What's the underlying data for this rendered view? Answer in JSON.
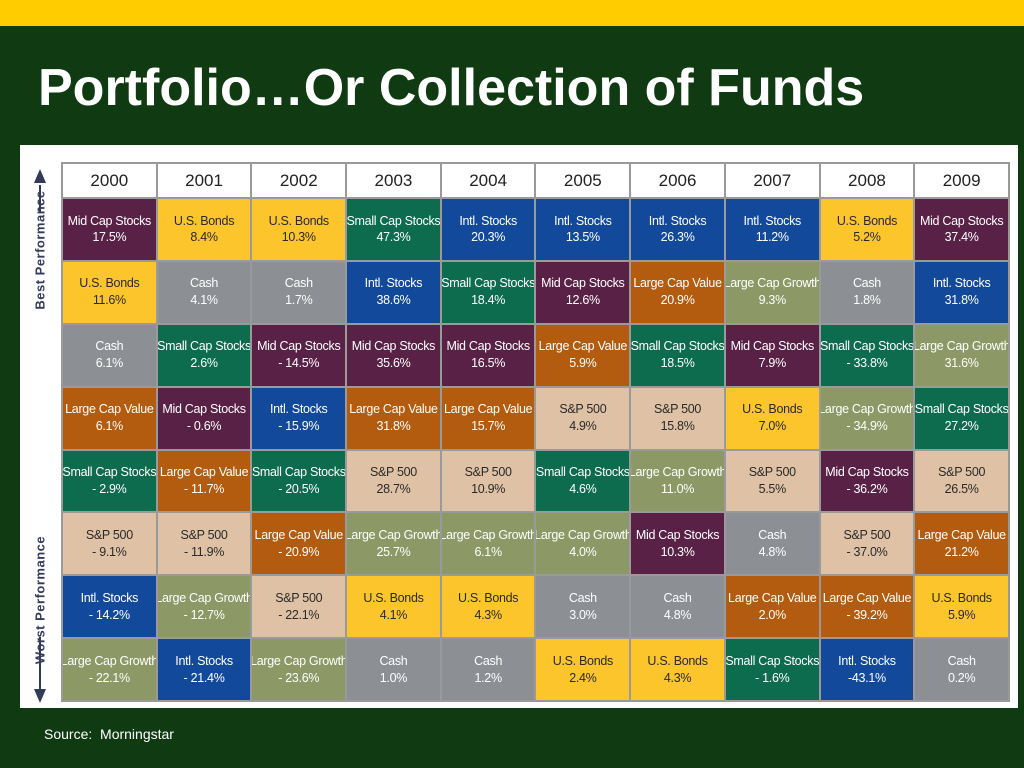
{
  "slide": {
    "title": "Portfolio…Or Collection of Funds",
    "source": "Source:  Morningstar"
  },
  "axis": {
    "best_label": "Best Performance",
    "worst_label": "Worst Performance"
  },
  "colors": {
    "top_bar": "#ffcc00",
    "background": "#0f3a12",
    "Mid Cap Stocks": "#5a2147",
    "U.S. Bonds": "#fcc52c",
    "Small Cap Stocks": "#0d6b4e",
    "Intl. Stocks": "#12499b",
    "Cash": "#8c9095",
    "Large Cap Value": "#b35c10",
    "Large Cap Growth": "#8c9866",
    "S&P 500": "#dfc1a5"
  },
  "table": {
    "years": [
      "2000",
      "2001",
      "2002",
      "2003",
      "2004",
      "2005",
      "2006",
      "2007",
      "2008",
      "2009"
    ],
    "rows": [
      [
        {
          "name": "Mid Cap Stocks",
          "value": "17.5%"
        },
        {
          "name": "U.S. Bonds",
          "value": "8.4%"
        },
        {
          "name": "U.S. Bonds",
          "value": "10.3%"
        },
        {
          "name": "Small Cap Stocks",
          "value": "47.3%"
        },
        {
          "name": "Intl. Stocks",
          "value": "20.3%"
        },
        {
          "name": "Intl. Stocks",
          "value": "13.5%"
        },
        {
          "name": "Intl. Stocks",
          "value": "26.3%"
        },
        {
          "name": "Intl. Stocks",
          "value": "11.2%"
        },
        {
          "name": "U.S. Bonds",
          "value": "5.2%"
        },
        {
          "name": "Mid Cap Stocks",
          "value": "37.4%"
        }
      ],
      [
        {
          "name": "U.S. Bonds",
          "value": "11.6%"
        },
        {
          "name": "Cash",
          "value": "4.1%"
        },
        {
          "name": "Cash",
          "value": "1.7%"
        },
        {
          "name": "Intl. Stocks",
          "value": "38.6%"
        },
        {
          "name": "Small Cap Stocks",
          "value": "18.4%"
        },
        {
          "name": "Mid Cap Stocks",
          "value": "12.6%"
        },
        {
          "name": "Large Cap Value",
          "value": "20.9%"
        },
        {
          "name": "Large Cap Growth",
          "value": "9.3%"
        },
        {
          "name": "Cash",
          "value": "1.8%"
        },
        {
          "name": "Intl. Stocks",
          "value": "31.8%"
        }
      ],
      [
        {
          "name": "Cash",
          "value": "6.1%"
        },
        {
          "name": "Small Cap Stocks",
          "value": "2.6%"
        },
        {
          "name": "Mid Cap Stocks",
          "value": "- 14.5%"
        },
        {
          "name": "Mid Cap Stocks",
          "value": "35.6%"
        },
        {
          "name": "Mid Cap Stocks",
          "value": "16.5%"
        },
        {
          "name": "Large Cap Value",
          "value": "5.9%"
        },
        {
          "name": "Small Cap Stocks",
          "value": "18.5%"
        },
        {
          "name": "Mid Cap Stocks",
          "value": "7.9%"
        },
        {
          "name": "Small Cap Stocks",
          "value": "- 33.8%"
        },
        {
          "name": "Large Cap Growth",
          "value": "31.6%"
        }
      ],
      [
        {
          "name": "Large Cap Value",
          "value": "6.1%"
        },
        {
          "name": "Mid Cap Stocks",
          "value": "- 0.6%"
        },
        {
          "name": "Intl. Stocks",
          "value": "- 15.9%"
        },
        {
          "name": "Large Cap Value",
          "value": "31.8%"
        },
        {
          "name": "Large Cap Value",
          "value": "15.7%"
        },
        {
          "name": "S&P 500",
          "value": "4.9%"
        },
        {
          "name": "S&P 500",
          "value": "15.8%"
        },
        {
          "name": "U.S. Bonds",
          "value": "7.0%"
        },
        {
          "name": "Large Cap Growth",
          "value": "- 34.9%"
        },
        {
          "name": "Small Cap Stocks",
          "value": "27.2%"
        }
      ],
      [
        {
          "name": "Small Cap Stocks",
          "value": "- 2.9%"
        },
        {
          "name": "Large Cap Value",
          "value": "- 11.7%"
        },
        {
          "name": "Small Cap Stocks",
          "value": "- 20.5%"
        },
        {
          "name": "S&P 500",
          "value": "28.7%"
        },
        {
          "name": "S&P 500",
          "value": "10.9%"
        },
        {
          "name": "Small Cap Stocks",
          "value": "4.6%"
        },
        {
          "name": "Large Cap Growth",
          "value": "11.0%"
        },
        {
          "name": "S&P 500",
          "value": "5.5%"
        },
        {
          "name": "Mid Cap Stocks",
          "value": "- 36.2%"
        },
        {
          "name": "S&P 500",
          "value": "26.5%"
        }
      ],
      [
        {
          "name": "S&P 500",
          "value": "- 9.1%"
        },
        {
          "name": "S&P 500",
          "value": "- 11.9%"
        },
        {
          "name": "Large Cap Value",
          "value": "- 20.9%"
        },
        {
          "name": "Large Cap Growth",
          "value": "25.7%"
        },
        {
          "name": "Large Cap Growth",
          "value": "6.1%"
        },
        {
          "name": "Large Cap Growth",
          "value": "4.0%"
        },
        {
          "name": "Mid Cap Stocks",
          "value": "10.3%"
        },
        {
          "name": "Cash",
          "value": "4.8%"
        },
        {
          "name": "S&P 500",
          "value": "- 37.0%"
        },
        {
          "name": "Large Cap Value",
          "value": "21.2%"
        }
      ],
      [
        {
          "name": "Intl. Stocks",
          "value": "- 14.2%"
        },
        {
          "name": "Large Cap Growth",
          "value": "- 12.7%"
        },
        {
          "name": "S&P 500",
          "value": "- 22.1%"
        },
        {
          "name": "U.S. Bonds",
          "value": "4.1%"
        },
        {
          "name": "U.S. Bonds",
          "value": "4.3%"
        },
        {
          "name": "Cash",
          "value": "3.0%"
        },
        {
          "name": "Cash",
          "value": "4.8%"
        },
        {
          "name": "Large Cap Value",
          "value": "2.0%"
        },
        {
          "name": "Large Cap Value",
          "value": "- 39.2%"
        },
        {
          "name": "U.S. Bonds",
          "value": "5.9%"
        }
      ],
      [
        {
          "name": "Large Cap Growth",
          "value": "- 22.1%"
        },
        {
          "name": "Intl. Stocks",
          "value": "- 21.4%"
        },
        {
          "name": "Large Cap Growth",
          "value": "- 23.6%"
        },
        {
          "name": "Cash",
          "value": "1.0%"
        },
        {
          "name": "Cash",
          "value": "1.2%"
        },
        {
          "name": "U.S. Bonds",
          "value": "2.4%"
        },
        {
          "name": "U.S. Bonds",
          "value": "4.3%"
        },
        {
          "name": "Small Cap Stocks",
          "value": "- 1.6%"
        },
        {
          "name": "Intl. Stocks",
          "value": "-43.1%"
        },
        {
          "name": "Cash",
          "value": "0.2%"
        }
      ]
    ]
  }
}
